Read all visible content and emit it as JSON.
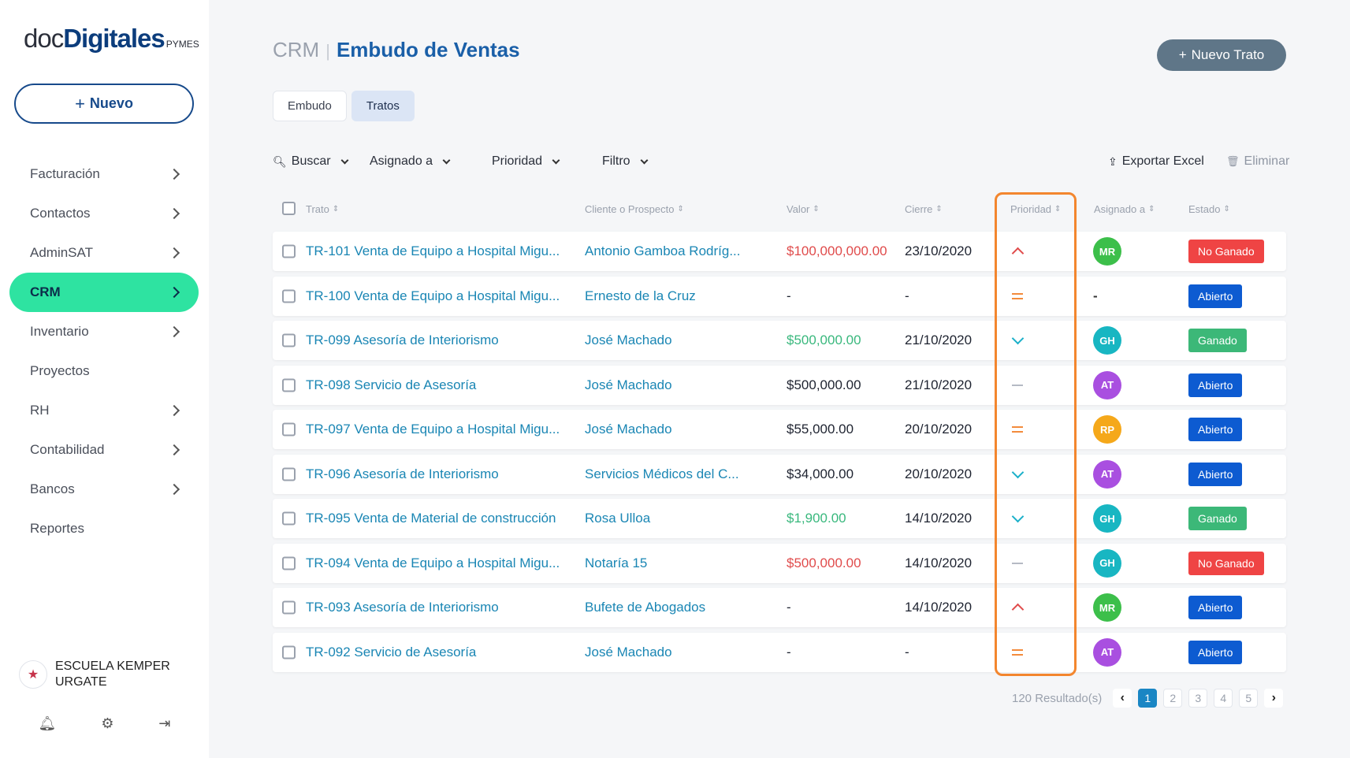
{
  "sidebar": {
    "logo": {
      "doc": "doc",
      "digitales": "Digitales",
      "pymes": "PYMES"
    },
    "new_button": "Nuevo",
    "items": [
      {
        "label": "Facturación",
        "chevron": true
      },
      {
        "label": "Contactos",
        "chevron": true
      },
      {
        "label": "AdminSAT",
        "chevron": true
      },
      {
        "label": "CRM",
        "chevron": true,
        "active": true
      },
      {
        "label": "Inventario",
        "chevron": true
      },
      {
        "label": "Proyectos",
        "chevron": false
      },
      {
        "label": "RH",
        "chevron": true
      },
      {
        "label": "Contabilidad",
        "chevron": true
      },
      {
        "label": "Bancos",
        "chevron": true
      },
      {
        "label": "Reportes",
        "chevron": false
      }
    ],
    "company": "ESCUELA KEMPER URGATE"
  },
  "header": {
    "section": "CRM",
    "separator": "|",
    "page": "Embudo de Ventas",
    "new_deal": "Nuevo Trato"
  },
  "tabs": [
    {
      "label": "Embudo"
    },
    {
      "label": "Tratos",
      "active": true
    }
  ],
  "toolbar": {
    "search": "Buscar",
    "assigned": "Asignado a",
    "priority": "Prioridad",
    "filter": "Filtro",
    "export": "Exportar Excel",
    "delete": "Eliminar"
  },
  "columns": {
    "trato": "Trato",
    "cliente": "Cliente o Prospecto",
    "valor": "Valor",
    "cierre": "Cierre",
    "prioridad": "Prioridad",
    "asignado": "Asignado a",
    "estado": "Estado"
  },
  "rows": [
    {
      "trato": "TR-101 Venta de Equipo a Hospital Migu...",
      "cliente": "Antonio Gamboa Rodríg...",
      "valor": "$100,000,000.00",
      "valor_color": "#e04b4b",
      "cierre": "23/10/2020",
      "prioridad": "up",
      "asignado": "MR",
      "asignado_color": "#3cbf4a",
      "estado": "No Ganado",
      "estado_color": "#ef4444"
    },
    {
      "trato": "TR-100 Venta de Equipo a Hospital Migu...",
      "cliente": "Ernesto de la Cruz",
      "valor": "-",
      "valor_color": "#1e2330",
      "cierre": "-",
      "prioridad": "equal",
      "asignado": "-",
      "asignado_color": "",
      "estado": "Abierto",
      "estado_color": "#0d5bd1"
    },
    {
      "trato": "TR-099 Asesoría de Interiorismo",
      "cliente": "José Machado",
      "valor": "$500,000.00",
      "valor_color": "#39b87d",
      "cierre": "21/10/2020",
      "prioridad": "down",
      "asignado": "GH",
      "asignado_color": "#18b6c2",
      "estado": "Ganado",
      "estado_color": "#3cb878"
    },
    {
      "trato": "TR-098 Servicio de Asesoría",
      "cliente": "José Machado",
      "valor": "$500,000.00",
      "valor_color": "#1e2330",
      "cierre": "21/10/2020",
      "prioridad": "dash",
      "asignado": "AT",
      "asignado_color": "#a94fe0",
      "estado": "Abierto",
      "estado_color": "#0d5bd1"
    },
    {
      "trato": "TR-097 Venta de Equipo a Hospital Migu...",
      "cliente": "José Machado",
      "valor": "$55,000.00",
      "valor_color": "#1e2330",
      "cierre": "20/10/2020",
      "prioridad": "equal",
      "asignado": "RP",
      "asignado_color": "#f5a81a",
      "estado": "Abierto",
      "estado_color": "#0d5bd1"
    },
    {
      "trato": "TR-096 Asesoría de Interiorismo",
      "cliente": "Servicios Médicos del C...",
      "valor": "$34,000.00",
      "valor_color": "#1e2330",
      "cierre": "20/10/2020",
      "prioridad": "down",
      "asignado": "AT",
      "asignado_color": "#a94fe0",
      "estado": "Abierto",
      "estado_color": "#0d5bd1"
    },
    {
      "trato": "TR-095 Venta de Material de construcción",
      "cliente": "Rosa Ulloa",
      "valor": "$1,900.00",
      "valor_color": "#39b87d",
      "cierre": "14/10/2020",
      "prioridad": "down",
      "asignado": "GH",
      "asignado_color": "#18b6c2",
      "estado": "Ganado",
      "estado_color": "#3cb878"
    },
    {
      "trato": "TR-094 Venta de Equipo a Hospital Migu...",
      "cliente": "Notaría 15",
      "valor": "$500,000.00",
      "valor_color": "#e04b4b",
      "cierre": "14/10/2020",
      "prioridad": "dash",
      "asignado": "GH",
      "asignado_color": "#18b6c2",
      "estado": "No Ganado",
      "estado_color": "#ef4444"
    },
    {
      "trato": "TR-093 Asesoría de Interiorismo",
      "cliente": "Bufete de Abogados",
      "valor": "-",
      "valor_color": "#1e2330",
      "cierre": "14/10/2020",
      "prioridad": "up",
      "asignado": "MR",
      "asignado_color": "#3cbf4a",
      "estado": "Abierto",
      "estado_color": "#0d5bd1"
    },
    {
      "trato": "TR-092 Servicio de Asesoría",
      "cliente": "José Machado",
      "valor": "-",
      "valor_color": "#1e2330",
      "cierre": "-",
      "prioridad": "equal",
      "asignado": "AT",
      "asignado_color": "#a94fe0",
      "estado": "Abierto",
      "estado_color": "#0d5bd1"
    }
  ],
  "pagination": {
    "results": "120 Resultado(s)",
    "pages": [
      "1",
      "2",
      "3",
      "4",
      "5"
    ],
    "current": "1"
  }
}
